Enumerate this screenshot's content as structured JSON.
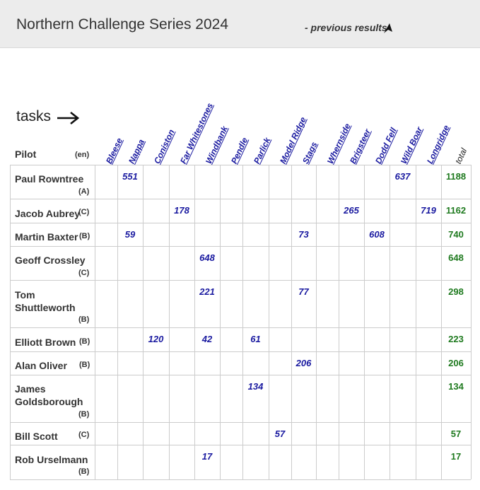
{
  "header": {
    "title": "Northern Challenge Series 2024",
    "prev_link": "- previous results",
    "prev_icon": "triangle-pointer-icon"
  },
  "tasks_label": "tasks",
  "pilot_header": "Pilot",
  "lang_header": "(en)",
  "total_header": "total",
  "tasks": [
    "Bleese",
    "Nappa",
    "Coniston",
    "Far Whitestones",
    "Windbank",
    "Pendle",
    "Parlick",
    "Model Ridge",
    "Stags",
    "Whernside",
    "Brigsteer",
    "Dodd Fell",
    "Wild Boar",
    "Longridge"
  ],
  "pilots": [
    {
      "name": "Paul Rowntree",
      "class": "(A)",
      "total": "1188",
      "scores": {
        "1": "551",
        "12": "637"
      }
    },
    {
      "name": "Jacob Aubrey",
      "class": "(C)",
      "total": "1162",
      "scores": {
        "3": "178",
        "10": "265",
        "13": "719"
      }
    },
    {
      "name": "Martin Baxter",
      "class": "(B)",
      "total": "740",
      "scores": {
        "1": "59",
        "8": "73",
        "11": "608"
      }
    },
    {
      "name": "Geoff Crossley",
      "class": "(C)",
      "total": "648",
      "scores": {
        "4": "648"
      }
    },
    {
      "name": "Tom Shuttleworth",
      "class": "(B)",
      "total": "298",
      "scores": {
        "4": "221",
        "8": "77"
      }
    },
    {
      "name": "Elliott Brown",
      "class": "(B)",
      "total": "223",
      "scores": {
        "2": "120",
        "4": "42",
        "6": "61"
      }
    },
    {
      "name": "Alan Oliver",
      "class": "(B)",
      "total": "206",
      "scores": {
        "8": "206"
      }
    },
    {
      "name": "James Goldsborough",
      "class": "(B)",
      "total": "134",
      "scores": {
        "6": "134"
      }
    },
    {
      "name": "Bill Scott",
      "class": "(C)",
      "total": "57",
      "scores": {
        "7": "57"
      }
    },
    {
      "name": "Rob Urselmann",
      "class": "(B)",
      "total": "17",
      "scores": {
        "4": "17"
      }
    }
  ],
  "colors": {
    "task_link": "#1a1aa0",
    "score": "#1a1aa0",
    "total": "#1f7a1f",
    "grid": "#cccccc",
    "header_bg": "#ececec"
  }
}
